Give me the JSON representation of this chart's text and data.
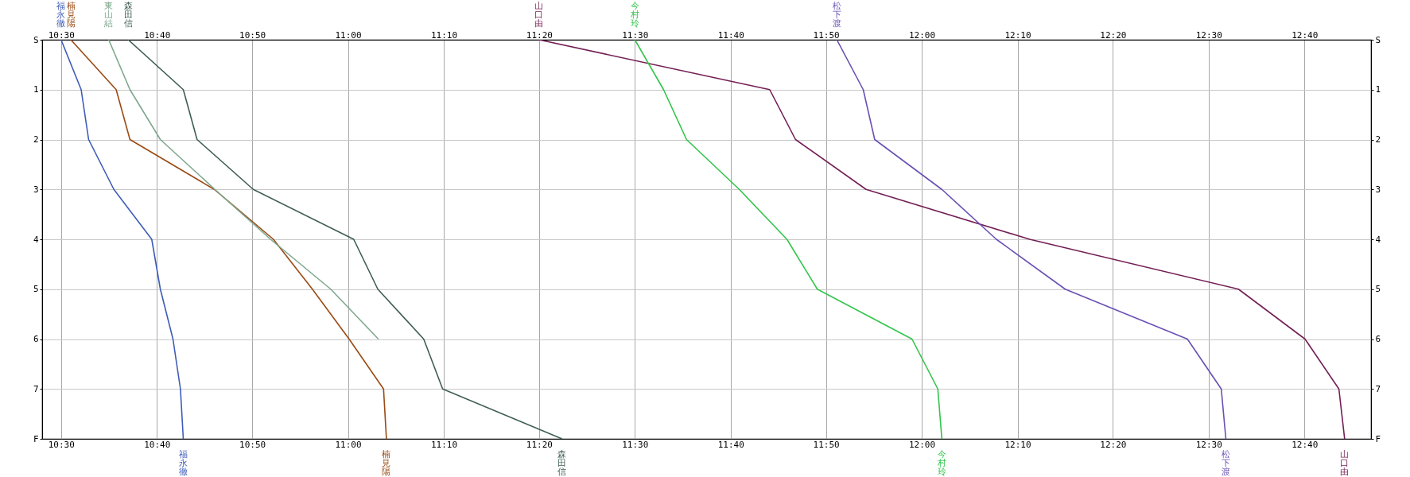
{
  "chart_data": {
    "type": "line",
    "xlim": [
      10.467,
      12.783
    ],
    "xticks": [
      {
        "value": 10.5,
        "label": "10:30"
      },
      {
        "value": 10.667,
        "label": "10:40"
      },
      {
        "value": 10.833,
        "label": "10:50"
      },
      {
        "value": 11,
        "label": "11:00"
      },
      {
        "value": 11.167,
        "label": "11:10"
      },
      {
        "value": 11.333,
        "label": "11:20"
      },
      {
        "value": 11.5,
        "label": "11:30"
      },
      {
        "value": 11.667,
        "label": "11:40"
      },
      {
        "value": 11.833,
        "label": "11:50"
      },
      {
        "value": 12,
        "label": "12:00"
      },
      {
        "value": 12.167,
        "label": "12:10"
      },
      {
        "value": 12.333,
        "label": "12:20"
      },
      {
        "value": 12.5,
        "label": "12:30"
      },
      {
        "value": 12.667,
        "label": "12:40"
      }
    ],
    "x2lim": [
      10.467,
      12.783
    ],
    "x2ticks": [
      {
        "value": 10.5,
        "label": "10:30"
      },
      {
        "value": 10.667,
        "label": "10:40"
      },
      {
        "value": 10.833,
        "label": "10:50"
      },
      {
        "value": 11,
        "label": "11:00"
      },
      {
        "value": 11.167,
        "label": "11:10"
      },
      {
        "value": 11.333,
        "label": "11:20"
      },
      {
        "value": 11.5,
        "label": "11:30"
      },
      {
        "value": 11.667,
        "label": "11:40"
      },
      {
        "value": 11.833,
        "label": "11:50"
      },
      {
        "value": 12,
        "label": "12:00"
      },
      {
        "value": 12.167,
        "label": "12:10"
      },
      {
        "value": 12.333,
        "label": "12:20"
      },
      {
        "value": 12.5,
        "label": "12:30"
      },
      {
        "value": 12.667,
        "label": "12:40"
      }
    ],
    "ylim": [
      8,
      0
    ],
    "yticks": [
      {
        "value": 0,
        "label": "S"
      },
      1,
      2,
      3,
      4,
      5,
      6,
      7,
      {
        "value": 8,
        "label": "F"
      }
    ],
    "y2lim": [
      8,
      0
    ],
    "y2ticks": [
      {
        "value": 0,
        "label": "S"
      },
      1,
      2,
      3,
      4,
      5,
      6,
      7,
      {
        "value": 8,
        "label": "F"
      }
    ],
    "grid": true,
    "legend": false,
    "series": [
      {
        "name": "福永徹",
        "color": "#3d5cb8",
        "x": [
          10.5,
          10.535,
          10.548,
          10.592,
          10.658,
          10.673,
          10.695,
          10.708,
          10.713
        ],
        "values": [
          0,
          1,
          2,
          3,
          4,
          5,
          6,
          7,
          8
        ]
      },
      {
        "name": "楠見陽",
        "color": "#9a4a14",
        "x": [
          10.517,
          10.596,
          10.62,
          10.767,
          10.87,
          10.938,
          11.002,
          11.062,
          11.067
        ],
        "values": [
          0,
          1,
          2,
          3,
          4,
          5,
          6,
          7,
          8
        ]
      },
      {
        "name": "東山結",
        "color": "#7fa88e",
        "x": [
          10.583,
          10.62,
          10.673,
          10.768,
          10.865,
          10.97,
          11.053
        ],
        "values": [
          0,
          1,
          2,
          3,
          4,
          5,
          6
        ]
      },
      {
        "name": "森田信",
        "color": "#3f5e52",
        "x": [
          10.617,
          10.713,
          10.737,
          10.835,
          11.01,
          11.052,
          11.132,
          11.165,
          11.373
        ],
        "values": [
          0,
          1,
          2,
          3,
          4,
          5,
          6,
          7,
          8
        ]
      },
      {
        "name": "山口由",
        "color": "#731f55",
        "x": [
          11.333,
          11.735,
          11.78,
          11.903,
          12.188,
          12.552,
          12.668,
          12.727,
          12.737
        ],
        "values": [
          0,
          1,
          2,
          3,
          4,
          5,
          6,
          7,
          8
        ]
      },
      {
        "name": "今村玲",
        "color": "#33c44c",
        "x": [
          11.5,
          11.55,
          11.59,
          11.682,
          11.765,
          11.818,
          11.983,
          12.028,
          12.035
        ],
        "values": [
          0,
          1,
          2,
          3,
          4,
          5,
          6,
          7,
          8
        ]
      },
      {
        "name": "松下渡",
        "color": "#6a50b4",
        "x": [
          11.852,
          11.898,
          11.918,
          12.035,
          12.13,
          12.25,
          12.463,
          12.522,
          12.53
        ],
        "values": [
          0,
          1,
          2,
          3,
          4,
          5,
          6,
          7,
          8
        ]
      }
    ]
  }
}
